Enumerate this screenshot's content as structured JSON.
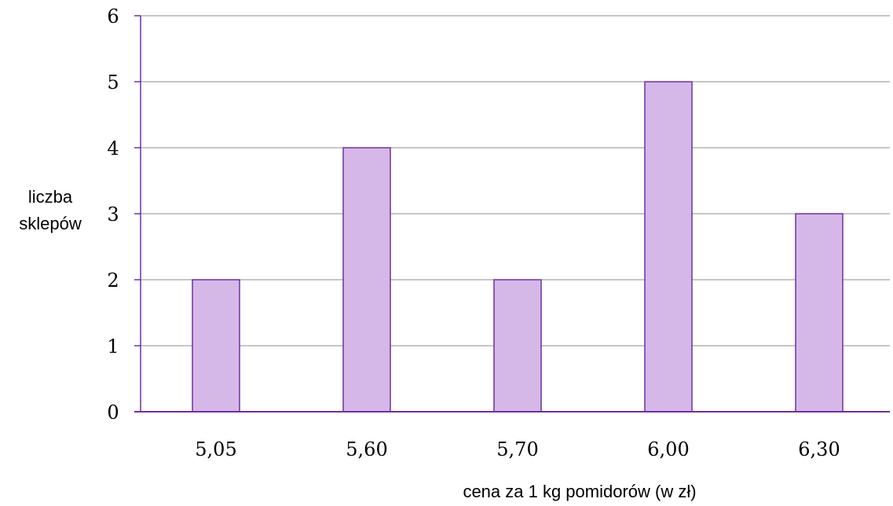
{
  "chart_data": {
    "type": "bar",
    "categories": [
      "5,05",
      "5,60",
      "5,70",
      "6,00",
      "6,30"
    ],
    "values": [
      2,
      4,
      2,
      5,
      3
    ],
    "title": "",
    "xlabel": "cena za 1 kg pomidorów (w zł)",
    "ylabel_lines": [
      "liczba",
      "sklepów"
    ],
    "ylim": [
      0,
      6
    ],
    "yticks": [
      "0",
      "1",
      "2",
      "3",
      "4",
      "5",
      "6"
    ],
    "grid": true,
    "legend": "none",
    "colors": {
      "bar_fill": "#d5b8e8",
      "bar_stroke": "#7030a0",
      "axis": "#7030a0",
      "grid": "#8c8c8c"
    }
  }
}
